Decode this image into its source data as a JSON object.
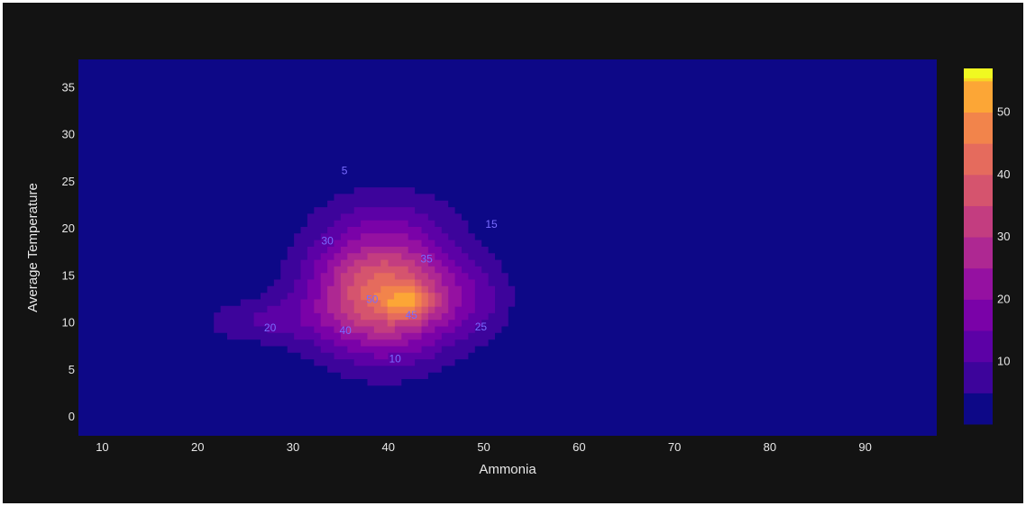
{
  "chart_data": {
    "type": "contour",
    "title": "",
    "xlabel": "Ammonia",
    "ylabel": "Average Temperature",
    "xlim": [
      7.5,
      97.5
    ],
    "ylim": [
      -2,
      38
    ],
    "x_ticks": [
      "10",
      "20",
      "30",
      "40",
      "50",
      "60",
      "70",
      "80",
      "90"
    ],
    "y_ticks": [
      "0",
      "5",
      "10",
      "15",
      "20",
      "25",
      "30",
      "35"
    ],
    "colorscale": "plasma",
    "colorbar": {
      "range": [
        0,
        57
      ],
      "ticks": [
        "10",
        "20",
        "30",
        "40",
        "50"
      ]
    },
    "levels": [
      {
        "value": 5,
        "color": "#3d049b",
        "label": "5"
      },
      {
        "value": 10,
        "color": "#5c01a6",
        "label": "10"
      },
      {
        "value": 15,
        "color": "#7a02a8",
        "label": "15"
      },
      {
        "value": 20,
        "color": "#9511a1",
        "label": "20"
      },
      {
        "value": 25,
        "color": "#ae2892",
        "label": "25"
      },
      {
        "value": 30,
        "color": "#c33d80",
        "label": "30"
      },
      {
        "value": 35,
        "color": "#d5546e",
        "label": "35"
      },
      {
        "value": 40,
        "color": "#e56b5d",
        "label": "40"
      },
      {
        "value": 45,
        "color": "#f2844b",
        "label": "45"
      },
      {
        "value": 50,
        "color": "#fca636",
        "label": "50"
      },
      {
        "value": 55,
        "color": "#f8d524",
        "label": ""
      }
    ],
    "peak": {
      "x": 42,
      "y": 12,
      "value": 57
    },
    "background_color": "#0d0887",
    "peak_color": "#f0f921"
  }
}
